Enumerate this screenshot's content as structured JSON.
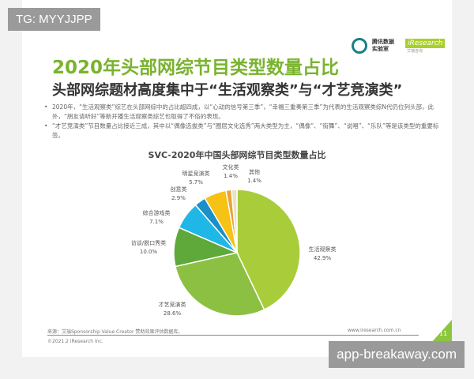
{
  "watermarks": {
    "top_left": "TG: MYYJJPP",
    "bottom_right": "app-breakaway.com"
  },
  "slide": {
    "title": "2020年头部网综节目类型数量占比",
    "subtitle": "头部网综题材高度集中于“生活观察类”与“才艺竞演类”",
    "bullets": [
      "2020年，“生活观察类”综艺在头部网综中的占比超四成，以“心动的信号第三季”，“幸福三重奏第三季”为代表的生活观察类综N代仍位列头部，此外，“朋友请听好”等新开播生活观察类综艺也取得了不俗的表现。",
      "“才艺竞演类”节目数量占比接近三成，其中以“偶像选拔类”与“圈层文化选秀”两大类型为主，“偶像”、“街舞”、“说唱”、“乐队”等是该类型的重要标签。"
    ],
    "logo": {
      "name1": "腾讯数据",
      "name2": "实验室",
      "brand2": "iResearch",
      "brand2_sub": "艾瑞咨询"
    },
    "footer": {
      "source": "来源：艾瑞Sponsorship Value Creator 赞助效果评估数据库。",
      "copyright": "©2021.2 iResearch Inc.",
      "url": "www.iresearch.com.cn",
      "page": "11"
    }
  },
  "chart_data": {
    "type": "pie",
    "title": "SVC-2020年中国头部网综节目类型数量占比",
    "start": "top",
    "direction": "clockwise",
    "slices": [
      {
        "label": "生活观察类",
        "value": 42.9,
        "display": "42.9%",
        "color": "#a9cc3a"
      },
      {
        "label": "才艺竞演类",
        "value": 28.6,
        "display": "28.6%",
        "color": "#8cc043"
      },
      {
        "label": "访谈/脱口秀类",
        "value": 10.0,
        "display": "10.0%",
        "color": "#5fa83a"
      },
      {
        "label": "综合游戏类",
        "value": 7.1,
        "display": "7.1%",
        "color": "#1fb7e6"
      },
      {
        "label": "创意类",
        "value": 2.9,
        "display": "2.9%",
        "color": "#1a8fc9"
      },
      {
        "label": "明星竞演类",
        "value": 5.7,
        "display": "5.7%",
        "color": "#f5c215"
      },
      {
        "label": "文化类",
        "value": 1.4,
        "display": "1.4%",
        "color": "#e8a23a"
      },
      {
        "label": "其他",
        "value": 1.4,
        "display": "1.4%",
        "color": "#e9e3c4"
      }
    ]
  }
}
